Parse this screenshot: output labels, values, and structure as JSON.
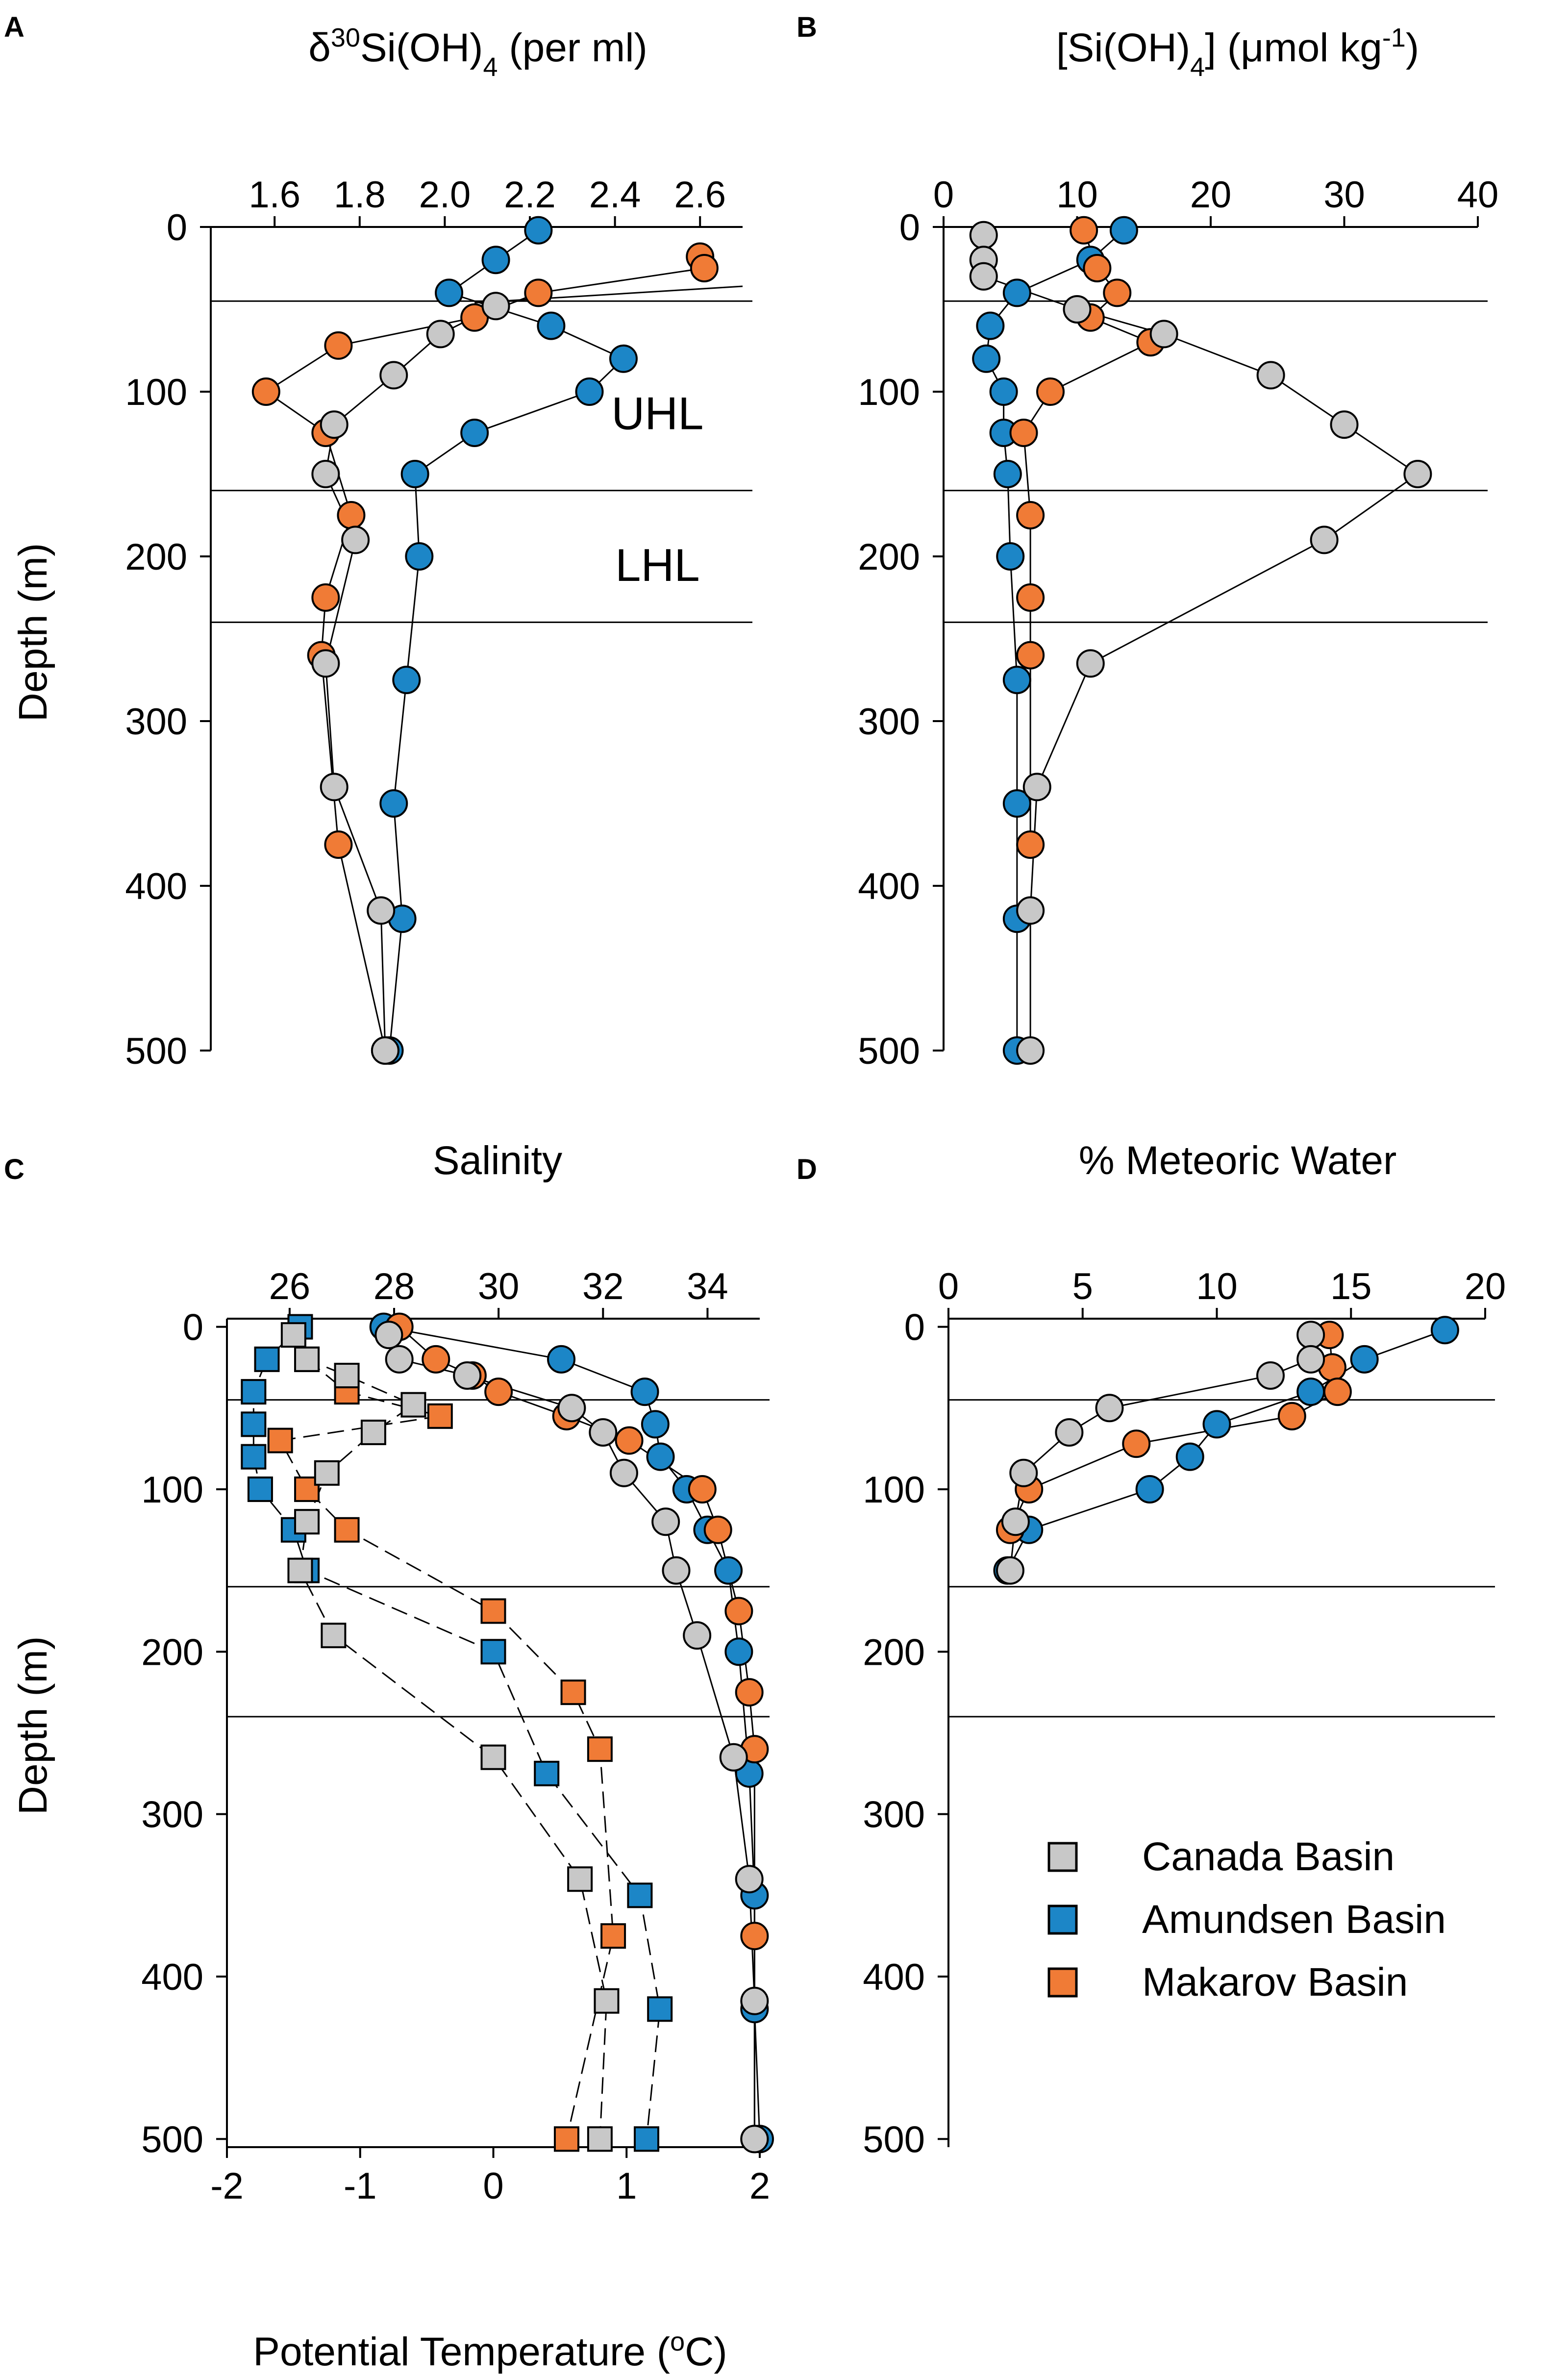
{
  "colors": {
    "canada": "#c8c8c8",
    "amundsen": "#1c86c7",
    "makarov": "#f07b36",
    "stroke": "#000000"
  },
  "legend": {
    "items": [
      {
        "series": "canada",
        "label": "Canada Basin"
      },
      {
        "series": "amundsen",
        "label": "Amundsen Basin"
      },
      {
        "series": "makarov",
        "label": "Makarov Basin"
      }
    ]
  },
  "chart_data": [
    {
      "panel": "A",
      "type": "scatter",
      "title": "δ30Si(OH)4 (per ml)",
      "ylabel": "Depth (m)",
      "xlim": [
        1.45,
        2.7
      ],
      "ylim": [
        500,
        0
      ],
      "xticks": [
        1.6,
        1.8,
        2.0,
        2.2,
        2.4,
        2.6
      ],
      "xtick_labels": [
        "1.6",
        "1.8",
        "2.0",
        "2.2",
        "2.4",
        "2.6"
      ],
      "yticks": [
        0,
        100,
        200,
        300,
        400,
        500
      ],
      "ytick_labels": [
        "0",
        "100",
        "200",
        "300",
        "400",
        "500"
      ],
      "hlines": [
        45,
        160,
        240
      ],
      "annotations": [
        {
          "text": "UHL",
          "x": 2.5,
          "y": 113
        },
        {
          "text": "LHL",
          "x": 2.5,
          "y": 205
        }
      ],
      "series": [
        {
          "name": "Amundsen Basin",
          "key": "amundsen",
          "marker": "circle",
          "line": "solid",
          "x": [
            2.22,
            2.12,
            2.01,
            2.25,
            2.42,
            2.34,
            2.07,
            1.93,
            1.94,
            1.91,
            1.88,
            1.9,
            1.87
          ],
          "y": [
            2,
            20,
            40,
            60,
            80,
            100,
            125,
            150,
            200,
            275,
            350,
            420,
            500
          ]
        },
        {
          "name": "Makarov Basin",
          "key": "makarov",
          "marker": "circle",
          "line": "solid",
          "x": [
            2.6,
            2.61,
            2.22,
            2.07,
            1.75,
            1.58,
            1.72,
            1.78,
            1.72,
            1.71,
            1.75,
            1.86
          ],
          "y": [
            18,
            25,
            40,
            55,
            72,
            100,
            125,
            175,
            225,
            260,
            375,
            500
          ]
        },
        {
          "name": "Canada Basin",
          "key": "canada",
          "marker": "circle",
          "line": "solid",
          "x": [
            2.12,
            1.99,
            1.88,
            1.74,
            1.72,
            1.79,
            1.72,
            1.74,
            1.85,
            1.86
          ],
          "y": [
            48,
            65,
            90,
            120,
            150,
            190,
            265,
            340,
            415,
            500
          ]
        }
      ],
      "extra_lines": [
        {
          "x": [
            2.07,
            2.7
          ],
          "y": [
            46,
            36
          ]
        }
      ]
    },
    {
      "panel": "B",
      "type": "scatter",
      "title": "[Si(OH)4] (μmol kg-1)",
      "ylabel": "",
      "xlim": [
        0,
        40
      ],
      "ylim": [
        500,
        0
      ],
      "xticks": [
        0,
        10,
        20,
        30,
        40
      ],
      "xtick_labels": [
        "0",
        "10",
        "20",
        "30",
        "40"
      ],
      "yticks": [
        0,
        100,
        200,
        300,
        400,
        500
      ],
      "ytick_labels": [
        "0",
        "100",
        "200",
        "300",
        "400",
        "500"
      ],
      "hlines": [
        45,
        160,
        240
      ],
      "annotations": [],
      "series": [
        {
          "name": "Amundsen Basin",
          "key": "amundsen",
          "marker": "circle",
          "line": "solid",
          "x": [
            13.5,
            11,
            5.5,
            3.5,
            3.2,
            4.5,
            4.5,
            4.8,
            5,
            5.5,
            5.5,
            5.5,
            5.5
          ],
          "y": [
            2,
            20,
            40,
            60,
            80,
            100,
            125,
            150,
            200,
            275,
            350,
            420,
            500
          ]
        },
        {
          "name": "Makarov Basin",
          "key": "makarov",
          "marker": "circle",
          "line": "solid",
          "x": [
            10.5,
            11.5,
            13,
            11,
            15.5,
            8,
            6,
            6.5,
            6.5,
            6.5,
            6.5
          ],
          "y": [
            2,
            25,
            40,
            55,
            70,
            100,
            125,
            175,
            225,
            260,
            375
          ]
        },
        {
          "name": "Canada Basin",
          "key": "canada",
          "marker": "circle",
          "line": "solid",
          "x": [
            3,
            3,
            3,
            10,
            16.5,
            24.5,
            30,
            35.5,
            28.5,
            11,
            7,
            6.5,
            6.5
          ],
          "y": [
            5,
            20,
            30,
            50,
            65,
            90,
            120,
            150,
            190,
            265,
            340,
            415,
            500
          ]
        }
      ],
      "extra_lines": []
    },
    {
      "panel": "C",
      "type": "scatter",
      "title": "Salinity",
      "ylabel": "Depth (m)",
      "xlabel": "Potential Temperature (oC)",
      "xlim": [
        24.8,
        35
      ],
      "ylim": [
        505,
        -5
      ],
      "x2lim": [
        -2,
        2
      ],
      "xticks": [
        26,
        28,
        30,
        32,
        34
      ],
      "xtick_labels": [
        "26",
        "28",
        "30",
        "32",
        "34"
      ],
      "x2ticks": [
        -2,
        -1,
        0,
        1,
        2
      ],
      "x2tick_labels": [
        "-2",
        "-1",
        "0",
        "1",
        "2"
      ],
      "yticks": [
        0,
        100,
        200,
        300,
        400,
        500
      ],
      "ytick_labels": [
        "0",
        "100",
        "200",
        "300",
        "400",
        "500"
      ],
      "hlines": [
        45,
        160,
        240
      ],
      "annotations": [],
      "series": [
        {
          "name": "Amundsen Basin",
          "key": "amundsen",
          "marker": "circle",
          "line": "solid",
          "axis": "salinity",
          "x": [
            27.8,
            31.2,
            32.8,
            33,
            33.1,
            33.6,
            34,
            34.4,
            34.6,
            34.8,
            34.9,
            34.9,
            35
          ],
          "y": [
            0,
            20,
            40,
            60,
            80,
            100,
            125,
            150,
            200,
            275,
            350,
            420,
            500
          ]
        },
        {
          "name": "Makarov Basin",
          "key": "makarov",
          "marker": "circle",
          "line": "solid",
          "axis": "salinity",
          "x": [
            28.1,
            28.8,
            29.5,
            30,
            31.3,
            32.5,
            33.9,
            34.2,
            34.6,
            34.8,
            34.9,
            34.9,
            34.9
          ],
          "y": [
            0,
            20,
            30,
            40,
            55,
            70,
            100,
            125,
            175,
            225,
            260,
            375,
            500
          ]
        },
        {
          "name": "Canada Basin",
          "key": "canada",
          "marker": "circle",
          "line": "solid",
          "axis": "salinity",
          "x": [
            27.9,
            28.1,
            29.4,
            31.4,
            32,
            32.4,
            33.2,
            33.4,
            33.8,
            34.5,
            34.8,
            34.9,
            34.9
          ],
          "y": [
            5,
            20,
            30,
            50,
            65,
            90,
            120,
            150,
            190,
            265,
            340,
            415,
            500
          ]
        },
        {
          "name": "Amundsen Basin",
          "key": "amundsen",
          "marker": "square",
          "line": "dashed",
          "axis": "temperature",
          "x": [
            -1.45,
            -1.7,
            -1.8,
            -1.8,
            -1.8,
            -1.75,
            -1.5,
            -1.4,
            0,
            0.4,
            1.1,
            1.25,
            1.15
          ],
          "y": [
            0,
            20,
            40,
            60,
            80,
            100,
            125,
            150,
            200,
            275,
            350,
            420,
            500
          ]
        },
        {
          "name": "Makarov Basin",
          "key": "makarov",
          "marker": "square",
          "line": "dashed",
          "axis": "temperature",
          "x": [
            -1.4,
            -1.1,
            -0.4,
            -1.6,
            -1.4,
            -1.1,
            0,
            0.6,
            0.8,
            0.9,
            0.55
          ],
          "y": [
            20,
            40,
            55,
            70,
            100,
            125,
            175,
            225,
            260,
            375,
            500
          ]
        },
        {
          "name": "Canada Basin",
          "key": "canada",
          "marker": "square",
          "line": "dashed",
          "axis": "temperature",
          "x": [
            -1.5,
            -1.4,
            -1.1,
            -0.6,
            -0.9,
            -1.25,
            -1.4,
            -1.45,
            -1.2,
            0,
            0.65,
            0.85,
            0.8
          ],
          "y": [
            5,
            20,
            30,
            48,
            65,
            90,
            120,
            150,
            190,
            265,
            340,
            415,
            500
          ]
        }
      ],
      "extra_lines": []
    },
    {
      "panel": "D",
      "type": "scatter",
      "title": "% Meteoric Water",
      "ylabel": "",
      "xlim": [
        0,
        20
      ],
      "ylim": [
        505,
        -5
      ],
      "xticks": [
        0,
        5,
        10,
        15,
        20
      ],
      "xtick_labels": [
        "0",
        "5",
        "10",
        "15",
        "20"
      ],
      "yticks": [
        0,
        100,
        200,
        300,
        400,
        500
      ],
      "ytick_labels": [
        "0",
        "100",
        "200",
        "300",
        "400",
        "500"
      ],
      "hlines": [
        45,
        160,
        240
      ],
      "annotations": [],
      "series": [
        {
          "name": "Amundsen Basin",
          "key": "amundsen",
          "marker": "circle",
          "line": "solid",
          "x": [
            18.5,
            15.5,
            13.5,
            10,
            9,
            7.5,
            3,
            2.2
          ],
          "y": [
            2,
            20,
            40,
            60,
            80,
            100,
            125,
            150
          ]
        },
        {
          "name": "Makarov Basin",
          "key": "makarov",
          "marker": "circle",
          "line": "solid",
          "x": [
            14.2,
            14.3,
            14.5,
            12.8,
            7,
            3,
            2.3
          ],
          "y": [
            5,
            25,
            40,
            55,
            72,
            100,
            125
          ]
        },
        {
          "name": "Canada Basin",
          "key": "canada",
          "marker": "circle",
          "line": "solid",
          "x": [
            13.5,
            13.5,
            12,
            6,
            4.5,
            2.8,
            2.5,
            2.3
          ],
          "y": [
            5,
            20,
            30,
            50,
            65,
            90,
            120,
            150
          ]
        }
      ],
      "extra_lines": []
    }
  ]
}
